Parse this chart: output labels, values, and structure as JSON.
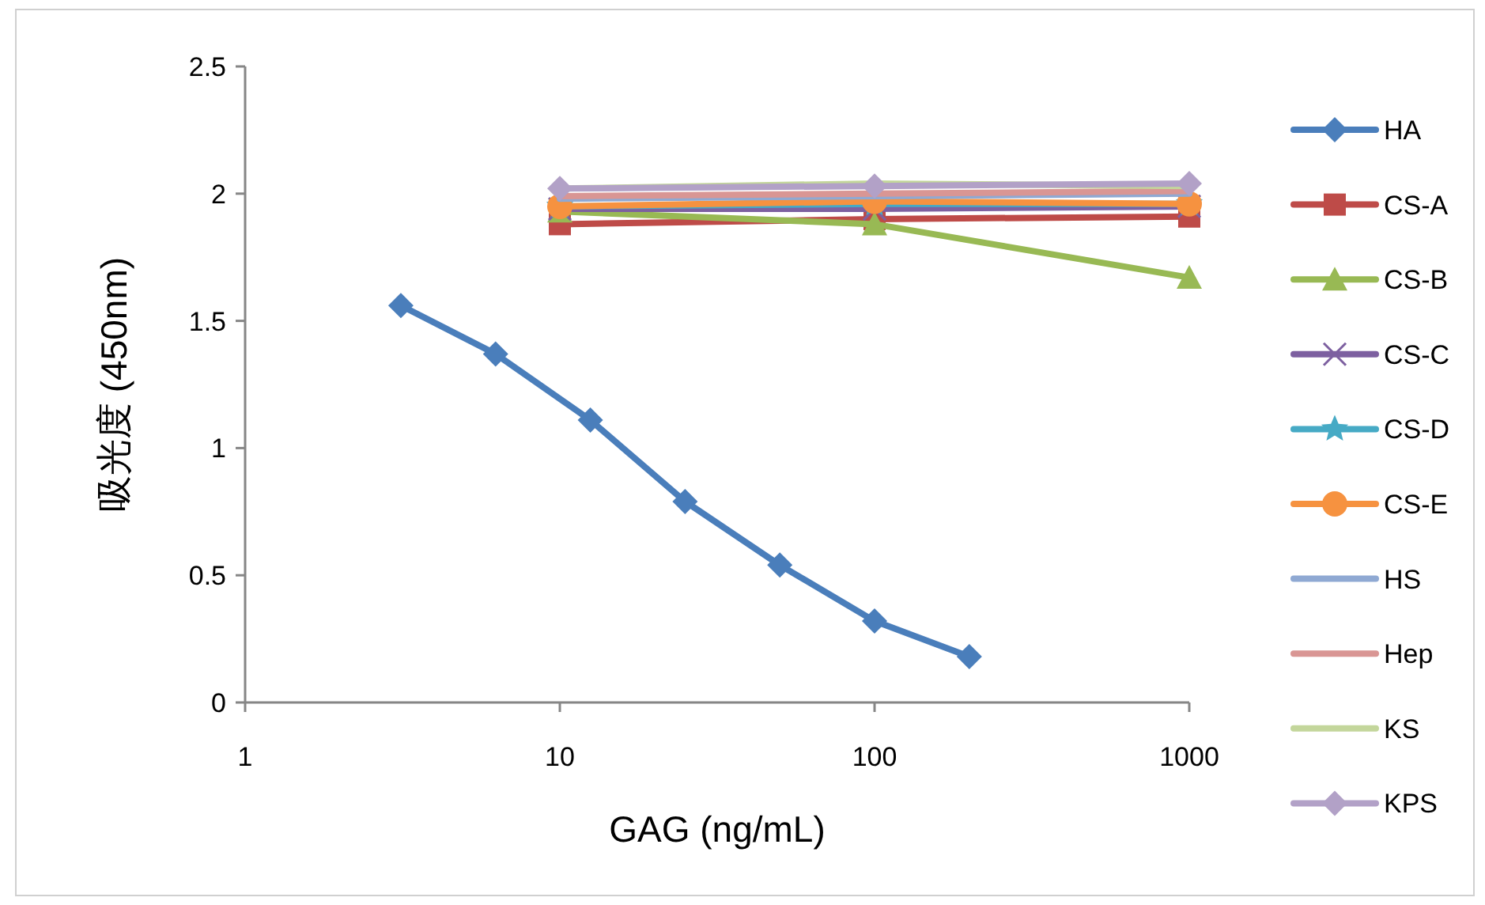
{
  "chart_data": {
    "type": "line",
    "xlabel": "GAG (ng/mL)",
    "ylabel": "吸光度 (450nm)",
    "log": "x",
    "xlim": [
      1,
      1000
    ],
    "xticks": [
      1,
      10,
      100,
      1000
    ],
    "ylim": [
      0,
      2.5
    ],
    "yticks": [
      0,
      0.5,
      1,
      1.5,
      2,
      2.5
    ],
    "legend": "right",
    "series": [
      {
        "name": "HA",
        "color": "#4a7ebb",
        "marker": "diamond",
        "x": [
          3.125,
          6.25,
          12.5,
          25,
          50,
          100,
          200
        ],
        "values": [
          1.56,
          1.37,
          1.11,
          0.79,
          0.54,
          0.32,
          0.18
        ]
      },
      {
        "name": "CS-A",
        "color": "#be4b48",
        "marker": "square",
        "x": [
          10,
          100,
          1000
        ],
        "values": [
          1.88,
          1.9,
          1.91
        ]
      },
      {
        "name": "CS-B",
        "color": "#98b954",
        "marker": "triangle",
        "x": [
          10,
          100,
          1000
        ],
        "values": [
          1.93,
          1.88,
          1.67
        ]
      },
      {
        "name": "CS-C",
        "color": "#7d60a0",
        "marker": "cross",
        "x": [
          10,
          100,
          1000
        ],
        "values": [
          1.94,
          1.94,
          1.95
        ]
      },
      {
        "name": "CS-D",
        "color": "#46aac5",
        "marker": "star",
        "x": [
          10,
          100,
          1000
        ],
        "values": [
          1.95,
          1.96,
          1.96
        ]
      },
      {
        "name": "CS-E",
        "color": "#f69240",
        "marker": "circle",
        "x": [
          10,
          100,
          1000
        ],
        "values": [
          1.95,
          1.97,
          1.96
        ]
      },
      {
        "name": "HS",
        "color": "#8fa9d3",
        "marker": "none",
        "x": [
          10,
          100,
          1000
        ],
        "values": [
          1.98,
          1.99,
          2.0
        ]
      },
      {
        "name": "Hep",
        "color": "#d99694",
        "marker": "none",
        "x": [
          10,
          100,
          1000
        ],
        "values": [
          1.99,
          2.0,
          2.01
        ]
      },
      {
        "name": "KS",
        "color": "#c3d69b",
        "marker": "none",
        "x": [
          10,
          100,
          1000
        ],
        "values": [
          2.02,
          2.04,
          2.03
        ]
      },
      {
        "name": "KPS",
        "color": "#b2a1c7",
        "marker": "diamond",
        "x": [
          10,
          100,
          1000
        ],
        "values": [
          2.02,
          2.03,
          2.04
        ]
      }
    ]
  }
}
